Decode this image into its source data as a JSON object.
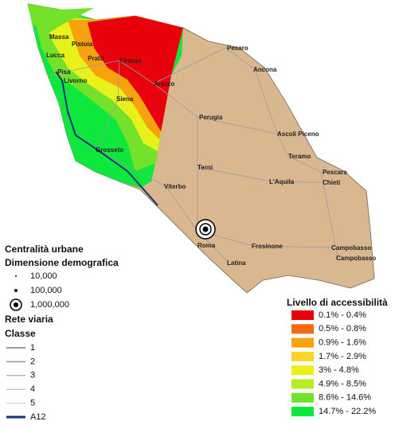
{
  "cities": [
    "Massa",
    "Pistoia",
    "Lucca",
    "Prato",
    "Firenze",
    "Pesaro",
    "Pisa",
    "Livorno",
    "Ancona",
    "Arezzo",
    "Siena",
    "Perugia",
    "Ascoli Piceno",
    "Grosseto",
    "Teramo",
    "Pescara",
    "Terni",
    "L'Aquila",
    "Chieti",
    "Viterbo",
    "Roma",
    "Frosinone",
    "Latina",
    "Campobasso",
    "Campobasso"
  ],
  "legend_left": {
    "title": "Centralità urbane",
    "subtitle": "Dimensione demografica",
    "sizes": [
      "10,000",
      "100,000",
      "1,000,000"
    ],
    "roads_title": "Rete viaria",
    "roads_subtitle": "Classe",
    "classes": [
      "1",
      "2",
      "3",
      "4",
      "5",
      "A12"
    ]
  },
  "legend_right": {
    "title": "Livello di accessibilità",
    "items": [
      {
        "label": "0.1% - 0.4%",
        "color": "#e8000b"
      },
      {
        "label": "0.5% - 0.8%",
        "color": "#f26a10"
      },
      {
        "label": "0.9% - 1.6%",
        "color": "#f7a20e"
      },
      {
        "label": "1.7% - 2.9%",
        "color": "#fcd528"
      },
      {
        "label": "3% - 4.8%",
        "color": "#e8f21a"
      },
      {
        "label": "4.9% - 8.5%",
        "color": "#b5ec22"
      },
      {
        "label": "8.6% - 14.6%",
        "color": "#74e22a"
      },
      {
        "label": "14.7% - 22.2%",
        "color": "#0ee83c"
      }
    ]
  }
}
